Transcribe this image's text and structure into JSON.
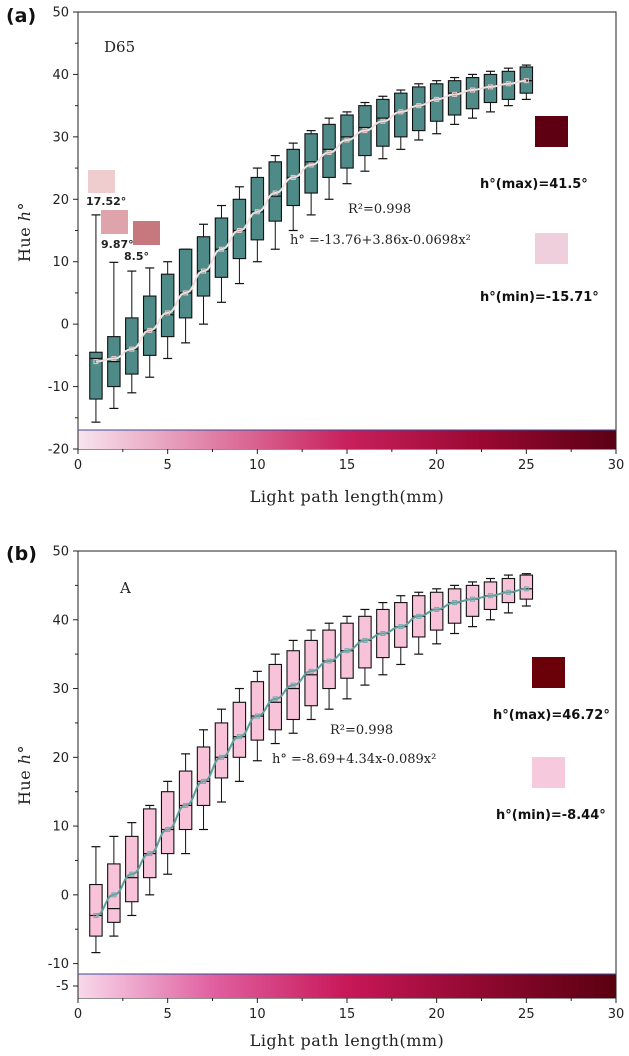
{
  "chart_data": [
    {
      "panel_label": "(a)",
      "type": "box",
      "title": "D65",
      "xlabel": "Light path length(mm)",
      "ylabel_prefix": "Hue ",
      "ylabel_symbol": "h°",
      "xlim": [
        0,
        30
      ],
      "ylim": [
        -20,
        50
      ],
      "xticks": [
        "0",
        "5",
        "10",
        "15",
        "20",
        "25",
        "30"
      ],
      "yticks": [
        "-20",
        "-10",
        "0",
        "10",
        "20",
        "30",
        "40",
        "50"
      ],
      "box_color": "#4e8a87",
      "curve_color": "#f2dede",
      "r2_text": "R²=0.998",
      "equation_text": "h° =-13.76+3.86x-0.0698x²",
      "gradient": [
        "#f8e4ee",
        "#e07fa6",
        "#c8205c",
        "#9a0832",
        "#5c0014"
      ],
      "swatches": [
        {
          "label": "h°(max)=41.5°",
          "color": "#5e0012"
        },
        {
          "label": "h°(min)=-15.71°",
          "color": "#efcfdb"
        }
      ],
      "mini_swatches": [
        {
          "label": "17.52°",
          "color": "#efcccd"
        },
        {
          "label": "9.87°",
          "color": "#dfa3ab"
        },
        {
          "label": "8.5°",
          "color": "#c7787f"
        }
      ],
      "boxes": [
        {
          "x": 1,
          "min": -15.7,
          "q1": -12,
          "median": -5.5,
          "q3": -4.5,
          "max": 17.5,
          "mean": -6
        },
        {
          "x": 2,
          "min": -13.5,
          "q1": -10,
          "median": -6,
          "q3": -2,
          "max": 9.9,
          "mean": -5.5
        },
        {
          "x": 3,
          "min": -11,
          "q1": -8,
          "median": -4,
          "q3": 1,
          "max": 8.5,
          "mean": -4
        },
        {
          "x": 4,
          "min": -8.5,
          "q1": -5,
          "median": -1,
          "q3": 4.5,
          "max": 9,
          "mean": -1
        },
        {
          "x": 5,
          "min": -5.5,
          "q1": -2,
          "median": 1.5,
          "q3": 8,
          "max": 10,
          "mean": 1.8
        },
        {
          "x": 6,
          "min": -3,
          "q1": 1,
          "median": 5,
          "q3": 12,
          "max": 12,
          "mean": 5
        },
        {
          "x": 7,
          "min": 0,
          "q1": 4.5,
          "median": 8.5,
          "q3": 14,
          "max": 16,
          "mean": 8.5
        },
        {
          "x": 8,
          "min": 3.5,
          "q1": 7.5,
          "median": 12,
          "q3": 17,
          "max": 19,
          "mean": 12
        },
        {
          "x": 9,
          "min": 6.5,
          "q1": 10.5,
          "median": 15,
          "q3": 20,
          "max": 22,
          "mean": 15
        },
        {
          "x": 10,
          "min": 10,
          "q1": 13.5,
          "median": 18,
          "q3": 23.5,
          "max": 25,
          "mean": 18
        },
        {
          "x": 11,
          "min": 12,
          "q1": 16.5,
          "median": 20.5,
          "q3": 26,
          "max": 27,
          "mean": 21
        },
        {
          "x": 12,
          "min": 15,
          "q1": 19,
          "median": 23.5,
          "q3": 28,
          "max": 29,
          "mean": 23.5
        },
        {
          "x": 13,
          "min": 17.5,
          "q1": 21,
          "median": 26,
          "q3": 30.5,
          "max": 31,
          "mean": 25.5
        },
        {
          "x": 14,
          "min": 20,
          "q1": 23.5,
          "median": 28,
          "q3": 32,
          "max": 33,
          "mean": 27.5
        },
        {
          "x": 15,
          "min": 22.5,
          "q1": 25,
          "median": 30,
          "q3": 33.5,
          "max": 34,
          "mean": 29.5
        },
        {
          "x": 16,
          "min": 24.5,
          "q1": 27,
          "median": 31.5,
          "q3": 35,
          "max": 35.5,
          "mean": 31
        },
        {
          "x": 17,
          "min": 26.5,
          "q1": 28.5,
          "median": 33,
          "q3": 36,
          "max": 36.5,
          "mean": 32.5
        },
        {
          "x": 18,
          "min": 28,
          "q1": 30,
          "median": 34,
          "q3": 37,
          "max": 37.5,
          "mean": 34
        },
        {
          "x": 19,
          "min": 29.5,
          "q1": 31,
          "median": 35,
          "q3": 38,
          "max": 38.5,
          "mean": 35
        },
        {
          "x": 20,
          "min": 30.5,
          "q1": 32.5,
          "median": 36,
          "q3": 38.5,
          "max": 39,
          "mean": 36
        },
        {
          "x": 21,
          "min": 32,
          "q1": 33.5,
          "median": 37,
          "q3": 39,
          "max": 39.5,
          "mean": 36.8
        },
        {
          "x": 22,
          "min": 33,
          "q1": 34.5,
          "median": 37.5,
          "q3": 39.5,
          "max": 40,
          "mean": 37.5
        },
        {
          "x": 23,
          "min": 34,
          "q1": 35.5,
          "median": 38,
          "q3": 40,
          "max": 40.5,
          "mean": 38
        },
        {
          "x": 24,
          "min": 35,
          "q1": 36,
          "median": 38.5,
          "q3": 40.5,
          "max": 41,
          "mean": 38.5
        },
        {
          "x": 25,
          "min": 36,
          "q1": 37,
          "median": 39,
          "q3": 41.2,
          "max": 41.5,
          "mean": 39
        }
      ]
    },
    {
      "panel_label": "(b)",
      "type": "box",
      "title": "A",
      "xlabel": "Light path length(mm)",
      "ylabel_prefix": "Hue ",
      "ylabel_symbol": "h°",
      "xlim": [
        0,
        30
      ],
      "ylim": [
        -15,
        50
      ],
      "xticks": [
        "0",
        "5",
        "10",
        "15",
        "20",
        "25",
        "30"
      ],
      "yticks": [
        "-10",
        "0",
        "10",
        "20",
        "30",
        "40",
        "50"
      ],
      "extra_ytick": "-5",
      "box_color": "#f8c3d8",
      "curve_color": "#5e9e9e",
      "r2_text": "R²=0.998",
      "equation_text": "h° =-8.69+4.34x-0.089x²",
      "gradient": [
        "#f8d8ea",
        "#e060a0",
        "#c81858",
        "#900830",
        "#5a0010"
      ],
      "swatches": [
        {
          "label": "h°(max)=46.72°",
          "color": "#6a0008"
        },
        {
          "label": "h°(min)=-8.44°",
          "color": "#f6c9dc"
        }
      ],
      "boxes": [
        {
          "x": 1,
          "min": -8.4,
          "q1": -6,
          "median": -3,
          "q3": 1.5,
          "max": 7,
          "mean": -3
        },
        {
          "x": 2,
          "min": -6,
          "q1": -4,
          "median": -2,
          "q3": 4.5,
          "max": 8.5,
          "mean": 0
        },
        {
          "x": 3,
          "min": -3,
          "q1": -1,
          "median": 2.5,
          "q3": 8.5,
          "max": 10.5,
          "mean": 3
        },
        {
          "x": 4,
          "min": 0,
          "q1": 2.5,
          "median": 6,
          "q3": 12.5,
          "max": 13,
          "mean": 6
        },
        {
          "x": 5,
          "min": 3,
          "q1": 6,
          "median": 9.5,
          "q3": 15,
          "max": 16.5,
          "mean": 9.5
        },
        {
          "x": 6,
          "min": 6,
          "q1": 9.5,
          "median": 13,
          "q3": 18,
          "max": 20.5,
          "mean": 13
        },
        {
          "x": 7,
          "min": 9.5,
          "q1": 13,
          "median": 16.5,
          "q3": 21.5,
          "max": 24,
          "mean": 16.5
        },
        {
          "x": 8,
          "min": 13.5,
          "q1": 17,
          "median": 20,
          "q3": 25,
          "max": 27,
          "mean": 20
        },
        {
          "x": 9,
          "min": 16.5,
          "q1": 20,
          "median": 23,
          "q3": 28,
          "max": 30,
          "mean": 23
        },
        {
          "x": 10,
          "min": 19.5,
          "q1": 22.5,
          "median": 26,
          "q3": 31,
          "max": 32.5,
          "mean": 26
        },
        {
          "x": 11,
          "min": 22,
          "q1": 24,
          "median": 28,
          "q3": 33.5,
          "max": 35,
          "mean": 28.5
        },
        {
          "x": 12,
          "min": 23.5,
          "q1": 25.5,
          "median": 30,
          "q3": 35.5,
          "max": 37,
          "mean": 30.5
        },
        {
          "x": 13,
          "min": 25.5,
          "q1": 27.5,
          "median": 32,
          "q3": 37,
          "max": 38.5,
          "mean": 32.5
        },
        {
          "x": 14,
          "min": 27,
          "q1": 30,
          "median": 34,
          "q3": 38.5,
          "max": 39.5,
          "mean": 34
        },
        {
          "x": 15,
          "min": 28.5,
          "q1": 31.5,
          "median": 35.5,
          "q3": 39.5,
          "max": 40.5,
          "mean": 35.5
        },
        {
          "x": 16,
          "min": 30.5,
          "q1": 33,
          "median": 37,
          "q3": 40.5,
          "max": 41.5,
          "mean": 37
        },
        {
          "x": 17,
          "min": 32,
          "q1": 34.5,
          "median": 38,
          "q3": 41.5,
          "max": 42.5,
          "mean": 38
        },
        {
          "x": 18,
          "min": 33.5,
          "q1": 36,
          "median": 39,
          "q3": 42.5,
          "max": 43.5,
          "mean": 39
        },
        {
          "x": 19,
          "min": 35,
          "q1": 37.5,
          "median": 40.5,
          "q3": 43.5,
          "max": 44,
          "mean": 40.5
        },
        {
          "x": 20,
          "min": 36.5,
          "q1": 38.5,
          "median": 41.5,
          "q3": 44,
          "max": 44.5,
          "mean": 41.5
        },
        {
          "x": 21,
          "min": 38,
          "q1": 39.5,
          "median": 42.5,
          "q3": 44.5,
          "max": 45,
          "mean": 42.5
        },
        {
          "x": 22,
          "min": 39,
          "q1": 40.5,
          "median": 43,
          "q3": 45,
          "max": 45.5,
          "mean": 43
        },
        {
          "x": 23,
          "min": 40,
          "q1": 41.5,
          "median": 43.5,
          "q3": 45.5,
          "max": 46,
          "mean": 43.5
        },
        {
          "x": 24,
          "min": 41,
          "q1": 42.5,
          "median": 44,
          "q3": 46,
          "max": 46.5,
          "mean": 44
        },
        {
          "x": 25,
          "min": 42,
          "q1": 43,
          "median": 44.5,
          "q3": 46.5,
          "max": 46.7,
          "mean": 44.5
        }
      ]
    }
  ]
}
